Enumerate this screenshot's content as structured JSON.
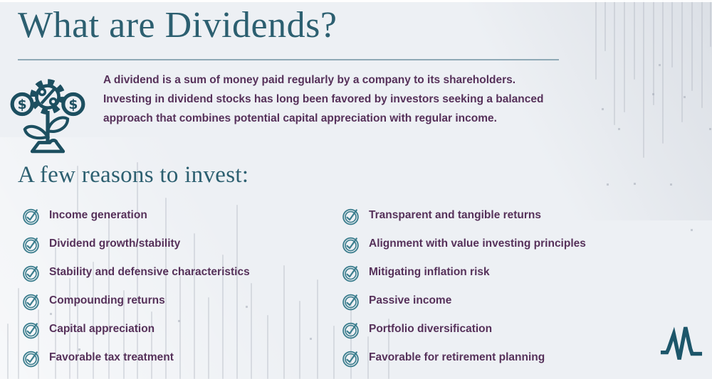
{
  "header": {
    "title": "What are Dividends?"
  },
  "intro": {
    "text": "A dividend is a sum of money paid regularly by a company to its shareholders. Investing in dividend stocks has long been favored by investors seeking a balanced approach that combines potential capital appreciation with regular income."
  },
  "reasons": {
    "heading": "A few reasons to invest:",
    "left": [
      "Income generation",
      "Dividend growth/stability",
      "Stability and defensive characteristics",
      "Compounding returns",
      "Capital appreciation",
      "Favorable tax treatment"
    ],
    "right": [
      "Transparent and tangible returns",
      "Alignment with value investing principles",
      "Mitigating inflation risk",
      "Passive income",
      "Portfolio diversification",
      "Favorable for retirement planning"
    ]
  },
  "icons": {
    "money_plant": "money-plant-icon",
    "check": "check-circle-icon",
    "logo": "pulse-m-logo"
  },
  "colors": {
    "background": "#edf0f4",
    "title_teal": "#2c5f70",
    "body_purple": "#56315a",
    "check_teal": "#3c7e8e",
    "icon_teal": "#1c4f60",
    "divider": "#8fa9b6"
  }
}
